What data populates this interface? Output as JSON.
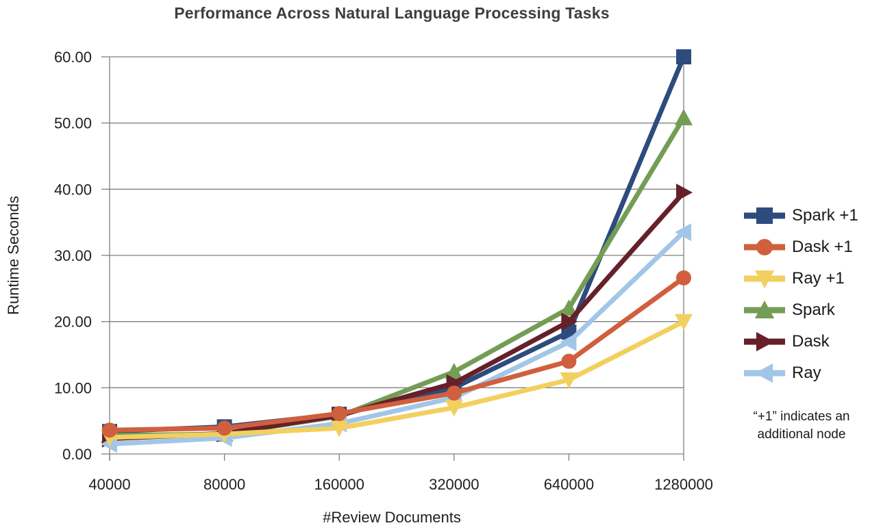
{
  "chart_data": {
    "type": "line",
    "title": "Performance Across Natural Language Processing Tasks",
    "xlabel": "#Review Documents",
    "ylabel": "Runtime Seconds",
    "categories": [
      "40000",
      "80000",
      "160000",
      "320000",
      "640000",
      "1280000"
    ],
    "y_ticks": [
      "0.00",
      "10.00",
      "20.00",
      "30.00",
      "40.00",
      "50.00",
      "60.00"
    ],
    "ylim": [
      0,
      60
    ],
    "grid": "horizontal",
    "legend_position": "right",
    "series": [
      {
        "name": "Spark +1",
        "marker": "square",
        "color": "#2d4b7d",
        "values": [
          3.4,
          4.1,
          6.0,
          10.0,
          18.4,
          60.0
        ]
      },
      {
        "name": "Dask +1",
        "marker": "circle",
        "color": "#d05f3d",
        "values": [
          3.6,
          3.9,
          6.1,
          9.2,
          14.0,
          26.6
        ]
      },
      {
        "name": "Ray +1",
        "marker": "triangle-down",
        "color": "#f2d05f",
        "values": [
          2.5,
          3.0,
          3.9,
          7.0,
          11.2,
          20.0
        ]
      },
      {
        "name": "Spark",
        "marker": "triangle-up",
        "color": "#739d55",
        "values": [
          2.8,
          3.0,
          5.7,
          12.4,
          22.0,
          50.8
        ]
      },
      {
        "name": "Dask",
        "marker": "triangle-right",
        "color": "#66202a",
        "values": [
          2.3,
          3.1,
          5.8,
          10.7,
          20.0,
          39.5
        ]
      },
      {
        "name": "Ray",
        "marker": "triangle-left",
        "color": "#a2c6e8",
        "values": [
          1.5,
          2.4,
          4.6,
          8.5,
          16.9,
          33.5
        ]
      }
    ],
    "annotation": [
      "“+1” indicates an",
      "additional node"
    ]
  },
  "colors": {
    "grid": "#7f7f7f",
    "axis": "#7f7f7f",
    "tick_text": "#1f1f1f",
    "title_text": "#3d3d42"
  }
}
